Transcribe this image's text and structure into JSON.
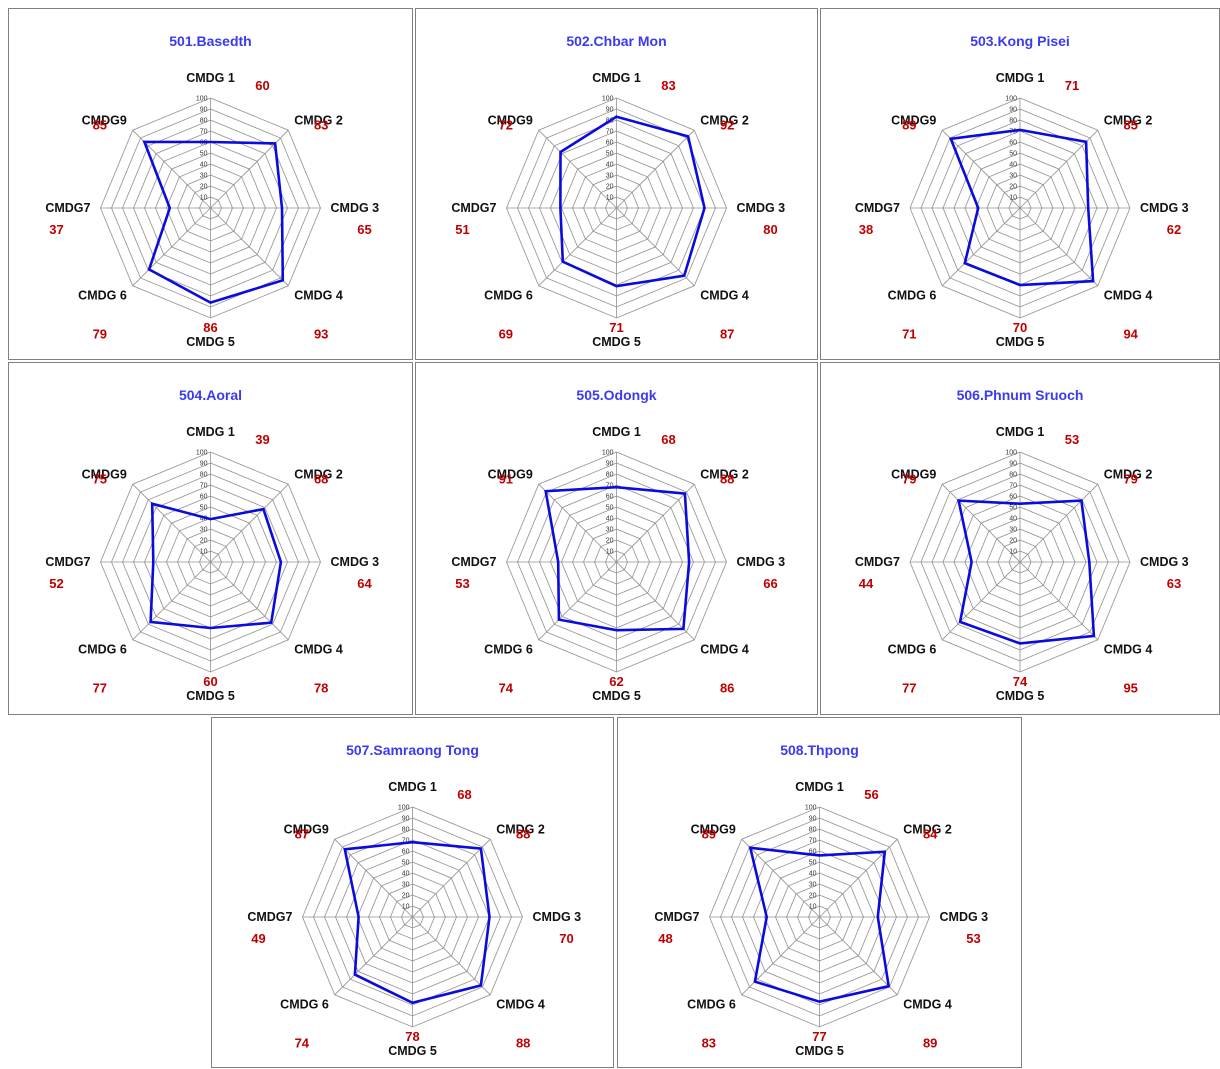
{
  "page": {
    "title": ""
  },
  "colors": {
    "series": "#0b0bdd",
    "grid": "#909090",
    "title": "#3a3af0",
    "value": "#c00000",
    "axis_text": "#111111"
  },
  "chart_data": [
    {
      "type": "radar",
      "title": "501.Basedth",
      "axes": [
        "CMDG 1",
        "CMDG 2",
        "CMDG 3",
        "CMDG 4",
        "CMDG 5",
        "CMDG 6",
        "CMDG7",
        "CMDG9"
      ],
      "values": [
        60,
        83,
        65,
        93,
        86,
        79,
        37,
        85
      ],
      "rlim": [
        0,
        100
      ],
      "ticks": [
        10,
        20,
        30,
        40,
        50,
        60,
        70,
        80,
        90,
        100
      ],
      "grid": true
    },
    {
      "type": "radar",
      "title": "502.Chbar Mon",
      "axes": [
        "CMDG 1",
        "CMDG 2",
        "CMDG 3",
        "CMDG 4",
        "CMDG 5",
        "CMDG 6",
        "CMDG7",
        "CMDG9"
      ],
      "values": [
        83,
        92,
        80,
        87,
        71,
        69,
        51,
        72
      ],
      "rlim": [
        0,
        100
      ],
      "ticks": [
        10,
        20,
        30,
        40,
        50,
        60,
        70,
        80,
        90,
        100
      ],
      "grid": true
    },
    {
      "type": "radar",
      "title": "503.Kong Pisei",
      "axes": [
        "CMDG 1",
        "CMDG 2",
        "CMDG 3",
        "CMDG 4",
        "CMDG 5",
        "CMDG 6",
        "CMDG7",
        "CMDG9"
      ],
      "values": [
        71,
        85,
        62,
        94,
        70,
        71,
        38,
        89
      ],
      "rlim": [
        0,
        100
      ],
      "ticks": [
        10,
        20,
        30,
        40,
        50,
        60,
        70,
        80,
        90,
        100
      ],
      "grid": true
    },
    {
      "type": "radar",
      "title": "504.Aoral",
      "axes": [
        "CMDG 1",
        "CMDG 2",
        "CMDG 3",
        "CMDG 4",
        "CMDG 5",
        "CMDG 6",
        "CMDG7",
        "CMDG9"
      ],
      "values": [
        39,
        68,
        64,
        78,
        60,
        77,
        52,
        75
      ],
      "rlim": [
        0,
        100
      ],
      "ticks": [
        10,
        20,
        30,
        40,
        50,
        60,
        70,
        80,
        90,
        100
      ],
      "grid": true
    },
    {
      "type": "radar",
      "title": "505.Odongk",
      "axes": [
        "CMDG 1",
        "CMDG 2",
        "CMDG 3",
        "CMDG 4",
        "CMDG 5",
        "CMDG 6",
        "CMDG7",
        "CMDG9"
      ],
      "values": [
        68,
        88,
        66,
        86,
        62,
        74,
        53,
        91
      ],
      "rlim": [
        0,
        100
      ],
      "ticks": [
        10,
        20,
        30,
        40,
        50,
        60,
        70,
        80,
        90,
        100
      ],
      "grid": true
    },
    {
      "type": "radar",
      "title": "506.Phnum Sruoch",
      "axes": [
        "CMDG 1",
        "CMDG 2",
        "CMDG 3",
        "CMDG 4",
        "CMDG 5",
        "CMDG 6",
        "CMDG7",
        "CMDG9"
      ],
      "values": [
        53,
        79,
        63,
        95,
        74,
        77,
        44,
        79
      ],
      "rlim": [
        0,
        100
      ],
      "ticks": [
        10,
        20,
        30,
        40,
        50,
        60,
        70,
        80,
        90,
        100
      ],
      "grid": true
    },
    {
      "type": "radar",
      "title": "507.Samraong Tong",
      "axes": [
        "CMDG 1",
        "CMDG 2",
        "CMDG 3",
        "CMDG 4",
        "CMDG 5",
        "CMDG 6",
        "CMDG7",
        "CMDG9"
      ],
      "values": [
        68,
        88,
        70,
        88,
        78,
        74,
        49,
        87
      ],
      "rlim": [
        0,
        100
      ],
      "ticks": [
        10,
        20,
        30,
        40,
        50,
        60,
        70,
        80,
        90,
        100
      ],
      "grid": true
    },
    {
      "type": "radar",
      "title": "508.Thpong",
      "axes": [
        "CMDG 1",
        "CMDG 2",
        "CMDG 3",
        "CMDG 4",
        "CMDG 5",
        "CMDG 6",
        "CMDG7",
        "CMDG9"
      ],
      "values": [
        56,
        84,
        53,
        89,
        77,
        83,
        48,
        89
      ],
      "rlim": [
        0,
        100
      ],
      "ticks": [
        10,
        20,
        30,
        40,
        50,
        60,
        70,
        80,
        90,
        100
      ],
      "grid": true
    }
  ]
}
